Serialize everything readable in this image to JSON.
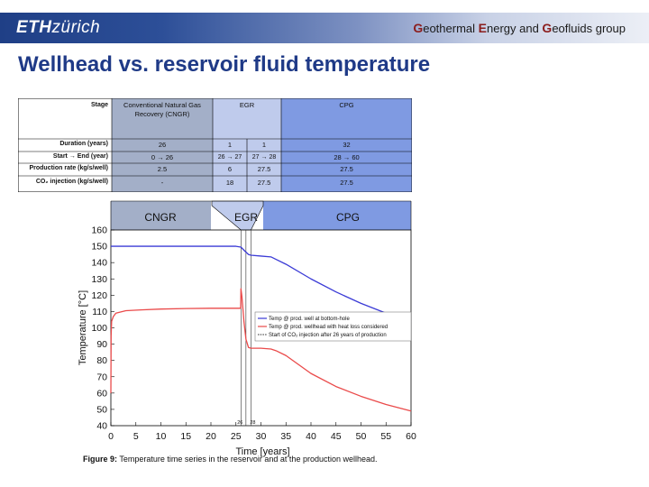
{
  "header": {
    "logo_bold": "ETH",
    "logo_rest": "zürich",
    "group": {
      "g1": "G",
      "w1": "eothermal ",
      "g2": "E",
      "w2": "nergy and ",
      "g3": "G",
      "w3": "eofluids",
      "w4": " group"
    }
  },
  "title": "Wellhead vs. reservoir fluid temperature",
  "table": {
    "stage_label": "Stage",
    "stage_cngr": "Conventional Natural Gas Recovery (CNGR)",
    "stage_egr": "EGR",
    "stage_cpg": "CPG",
    "rows": [
      {
        "label": "Duration (years)",
        "cngr": "26",
        "egr1": "1",
        "egr2": "1",
        "cpg": "32"
      },
      {
        "label": "Start → End (year)",
        "cngr": "0 → 26",
        "egr1": "26 → 27",
        "egr2": "27 → 28",
        "cpg": "28 → 60"
      },
      {
        "label": "Production rate (kg/s/well)",
        "cngr": "2.5",
        "egr1": "6",
        "egr2": "27.5",
        "cpg": "27.5"
      },
      {
        "label": "CO₂ injection (kg/s/well)",
        "cngr": "-",
        "egr1": "18",
        "egr2": "27.5",
        "cpg": "27.5"
      }
    ],
    "banner_cngr": "CNGR",
    "banner_egr": "EGR",
    "banner_cpg": "CPG"
  },
  "colors": {
    "cngr": "#a3afc8",
    "egr": "#bfcbec",
    "cpg": "#7f9ae2",
    "blue_line": "#3b3bd6",
    "red_line": "#ea4a4a"
  },
  "chart_data": {
    "type": "line",
    "xlabel": "Time [years]",
    "ylabel": "Temperature [°C]",
    "xlim": [
      0,
      60
    ],
    "ylim": [
      40,
      160
    ],
    "xticks": [
      0,
      5,
      10,
      15,
      20,
      25,
      30,
      35,
      40,
      45,
      50,
      55,
      60
    ],
    "yticks": [
      40,
      50,
      60,
      70,
      80,
      90,
      100,
      110,
      120,
      130,
      140,
      150,
      160
    ],
    "vlines": [
      26,
      27,
      28
    ],
    "vline_labels": [
      "26",
      "28"
    ],
    "legend_position": "right",
    "grid": false,
    "series": [
      {
        "name": "Temp @ prod. well at bottom-hole",
        "color": "#3b3bd6",
        "style": "solid",
        "x": [
          0,
          25,
          26,
          26.8,
          27.5,
          28,
          30,
          32,
          33,
          35,
          40,
          45,
          50,
          55,
          60
        ],
        "y": [
          150,
          150,
          149.5,
          147,
          145,
          144.5,
          144,
          143.5,
          142,
          139,
          130,
          122,
          115,
          109,
          103.5
        ]
      },
      {
        "name": "Temp @ prod. wellhead with heat loss considered",
        "color": "#ea4a4a",
        "style": "solid",
        "x": [
          0,
          0.05,
          0.15,
          0.5,
          1,
          3,
          6,
          10,
          15,
          20,
          25,
          25.95,
          26.0,
          26.2,
          26.6,
          27.0,
          27.5,
          28,
          30,
          32,
          33,
          35,
          40,
          45,
          50,
          55,
          60
        ],
        "y": [
          60,
          95,
          104,
          107,
          109,
          110.5,
          111,
          111.5,
          111.8,
          112,
          112,
          112,
          124,
          119,
          104,
          93,
          88,
          87.5,
          87.5,
          87,
          86,
          83,
          72,
          64,
          58,
          53,
          49
        ]
      },
      {
        "name": "Start of CO₂ injection after 26 years of production",
        "color": "#555555",
        "style": "dotted",
        "x": [],
        "y": []
      }
    ]
  },
  "caption": {
    "label": "Figure 9:",
    "text": " Temperature time series in the reservoir and at the production wellhead."
  }
}
